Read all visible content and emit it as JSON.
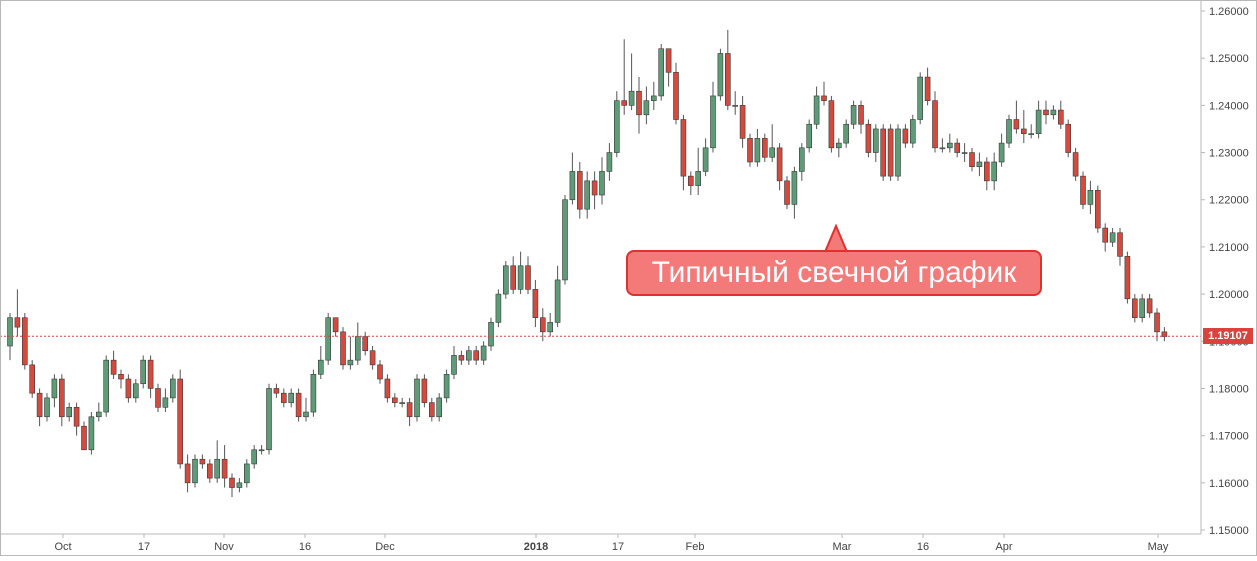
{
  "chart_data": {
    "type": "candlestick",
    "title": "",
    "ylim": [
      1.15,
      1.26
    ],
    "y_ticks": [
      "1.26000",
      "1.25000",
      "1.24000",
      "1.23000",
      "1.22000",
      "1.21000",
      "1.20000",
      "1.19000",
      "1.18000",
      "1.17000",
      "1.16000",
      "1.15000"
    ],
    "x_ticks": [
      "Oct",
      "17",
      "Nov",
      "16",
      "Dec",
      "2018",
      "17",
      "Feb",
      "Mar",
      "16",
      "Apr",
      "May"
    ],
    "current_price": 1.19107,
    "current_price_label": "1.19107",
    "annotation": "Типичный свечной график",
    "colors": {
      "up": "#5e9b77",
      "down": "#d44a3f",
      "price_line": "#d9433b"
    },
    "candles": [
      [
        1.189,
        1.195,
        1.196,
        1.186
      ],
      [
        1.195,
        1.193,
        1.201,
        1.191
      ],
      [
        1.195,
        1.185,
        1.196,
        1.184
      ],
      [
        1.185,
        1.179,
        1.186,
        1.178
      ],
      [
        1.179,
        1.174,
        1.18,
        1.172
      ],
      [
        1.174,
        1.178,
        1.179,
        1.173
      ],
      [
        1.178,
        1.182,
        1.183,
        1.176
      ],
      [
        1.182,
        1.174,
        1.183,
        1.172
      ],
      [
        1.174,
        1.176,
        1.177,
        1.173
      ],
      [
        1.176,
        1.172,
        1.177,
        1.17
      ],
      [
        1.172,
        1.167,
        1.173,
        1.167
      ],
      [
        1.167,
        1.174,
        1.175,
        1.166
      ],
      [
        1.174,
        1.175,
        1.177,
        1.173
      ],
      [
        1.175,
        1.186,
        1.187,
        1.174
      ],
      [
        1.186,
        1.183,
        1.188,
        1.182
      ],
      [
        1.183,
        1.182,
        1.184,
        1.18
      ],
      [
        1.182,
        1.178,
        1.183,
        1.177
      ],
      [
        1.178,
        1.181,
        1.182,
        1.177
      ],
      [
        1.181,
        1.186,
        1.187,
        1.18
      ],
      [
        1.186,
        1.18,
        1.187,
        1.178
      ],
      [
        1.18,
        1.176,
        1.181,
        1.175
      ],
      [
        1.176,
        1.178,
        1.18,
        1.175
      ],
      [
        1.178,
        1.182,
        1.183,
        1.177
      ],
      [
        1.182,
        1.164,
        1.184,
        1.163
      ],
      [
        1.164,
        1.16,
        1.166,
        1.158
      ],
      [
        1.16,
        1.165,
        1.166,
        1.159
      ],
      [
        1.165,
        1.164,
        1.166,
        1.163
      ],
      [
        1.164,
        1.161,
        1.165,
        1.16
      ],
      [
        1.161,
        1.165,
        1.169,
        1.16
      ],
      [
        1.165,
        1.161,
        1.168,
        1.159
      ],
      [
        1.161,
        1.159,
        1.162,
        1.157
      ],
      [
        1.159,
        1.16,
        1.161,
        1.158
      ],
      [
        1.16,
        1.164,
        1.165,
        1.159
      ],
      [
        1.164,
        1.167,
        1.168,
        1.163
      ],
      [
        1.167,
        1.167,
        1.168,
        1.166
      ],
      [
        1.167,
        1.18,
        1.181,
        1.166
      ],
      [
        1.18,
        1.179,
        1.181,
        1.178
      ],
      [
        1.179,
        1.177,
        1.18,
        1.176
      ],
      [
        1.177,
        1.179,
        1.18,
        1.176
      ],
      [
        1.179,
        1.174,
        1.18,
        1.173
      ],
      [
        1.174,
        1.175,
        1.178,
        1.173
      ],
      [
        1.175,
        1.183,
        1.184,
        1.174
      ],
      [
        1.183,
        1.186,
        1.189,
        1.182
      ],
      [
        1.186,
        1.195,
        1.196,
        1.185
      ],
      [
        1.195,
        1.192,
        1.195,
        1.191
      ],
      [
        1.192,
        1.185,
        1.193,
        1.184
      ],
      [
        1.185,
        1.186,
        1.191,
        1.184
      ],
      [
        1.186,
        1.191,
        1.194,
        1.185
      ],
      [
        1.191,
        1.188,
        1.192,
        1.187
      ],
      [
        1.188,
        1.185,
        1.189,
        1.184
      ],
      [
        1.185,
        1.182,
        1.186,
        1.181
      ],
      [
        1.182,
        1.178,
        1.183,
        1.177
      ],
      [
        1.178,
        1.177,
        1.179,
        1.176
      ],
      [
        1.177,
        1.177,
        1.178,
        1.176
      ],
      [
        1.177,
        1.174,
        1.178,
        1.172
      ],
      [
        1.174,
        1.182,
        1.183,
        1.173
      ],
      [
        1.182,
        1.177,
        1.183,
        1.176
      ],
      [
        1.177,
        1.174,
        1.178,
        1.173
      ],
      [
        1.174,
        1.178,
        1.179,
        1.173
      ],
      [
        1.178,
        1.183,
        1.184,
        1.177
      ],
      [
        1.183,
        1.187,
        1.189,
        1.182
      ],
      [
        1.187,
        1.186,
        1.188,
        1.185
      ],
      [
        1.186,
        1.188,
        1.189,
        1.185
      ],
      [
        1.188,
        1.186,
        1.189,
        1.185
      ],
      [
        1.186,
        1.189,
        1.19,
        1.185
      ],
      [
        1.189,
        1.194,
        1.195,
        1.188
      ],
      [
        1.194,
        1.2,
        1.201,
        1.193
      ],
      [
        1.2,
        1.206,
        1.207,
        1.199
      ],
      [
        1.206,
        1.201,
        1.208,
        1.2
      ],
      [
        1.201,
        1.206,
        1.209,
        1.2
      ],
      [
        1.206,
        1.201,
        1.208,
        1.2
      ],
      [
        1.201,
        1.195,
        1.203,
        1.193
      ],
      [
        1.195,
        1.192,
        1.197,
        1.19
      ],
      [
        1.192,
        1.194,
        1.196,
        1.191
      ],
      [
        1.194,
        1.203,
        1.206,
        1.193
      ],
      [
        1.203,
        1.22,
        1.221,
        1.202
      ],
      [
        1.22,
        1.226,
        1.23,
        1.219
      ],
      [
        1.226,
        1.218,
        1.228,
        1.216
      ],
      [
        1.218,
        1.224,
        1.226,
        1.216
      ],
      [
        1.224,
        1.221,
        1.226,
        1.218
      ],
      [
        1.221,
        1.226,
        1.229,
        1.219
      ],
      [
        1.226,
        1.23,
        1.232,
        1.224
      ],
      [
        1.23,
        1.241,
        1.243,
        1.229
      ],
      [
        1.241,
        1.24,
        1.254,
        1.238
      ],
      [
        1.24,
        1.243,
        1.251,
        1.239
      ],
      [
        1.243,
        1.238,
        1.246,
        1.234
      ],
      [
        1.238,
        1.241,
        1.244,
        1.236
      ],
      [
        1.241,
        1.242,
        1.245,
        1.239
      ],
      [
        1.242,
        1.252,
        1.253,
        1.241
      ],
      [
        1.252,
        1.247,
        1.252,
        1.244
      ],
      [
        1.247,
        1.237,
        1.249,
        1.236
      ],
      [
        1.237,
        1.225,
        1.238,
        1.222
      ],
      [
        1.225,
        1.223,
        1.226,
        1.221
      ],
      [
        1.223,
        1.226,
        1.231,
        1.221
      ],
      [
        1.226,
        1.231,
        1.233,
        1.225
      ],
      [
        1.231,
        1.242,
        1.245,
        1.23
      ],
      [
        1.242,
        1.251,
        1.252,
        1.241
      ],
      [
        1.251,
        1.24,
        1.256,
        1.239
      ],
      [
        1.24,
        1.24,
        1.243,
        1.238
      ],
      [
        1.24,
        1.233,
        1.242,
        1.231
      ],
      [
        1.233,
        1.228,
        1.234,
        1.227
      ],
      [
        1.228,
        1.233,
        1.235,
        1.227
      ],
      [
        1.233,
        1.229,
        1.234,
        1.228
      ],
      [
        1.229,
        1.231,
        1.236,
        1.228
      ],
      [
        1.231,
        1.224,
        1.232,
        1.222
      ],
      [
        1.224,
        1.219,
        1.225,
        1.218
      ],
      [
        1.219,
        1.226,
        1.227,
        1.216
      ],
      [
        1.226,
        1.231,
        1.232,
        1.224
      ],
      [
        1.231,
        1.236,
        1.237,
        1.23
      ],
      [
        1.236,
        1.242,
        1.244,
        1.235
      ],
      [
        1.242,
        1.241,
        1.245,
        1.24
      ],
      [
        1.241,
        1.231,
        1.242,
        1.23
      ],
      [
        1.231,
        1.232,
        1.233,
        1.229
      ],
      [
        1.232,
        1.236,
        1.237,
        1.231
      ],
      [
        1.236,
        1.24,
        1.241,
        1.235
      ],
      [
        1.24,
        1.236,
        1.241,
        1.234
      ],
      [
        1.236,
        1.23,
        1.237,
        1.229
      ],
      [
        1.23,
        1.235,
        1.236,
        1.228
      ],
      [
        1.235,
        1.225,
        1.236,
        1.224
      ],
      [
        1.235,
        1.225,
        1.236,
        1.224
      ],
      [
        1.225,
        1.235,
        1.236,
        1.224
      ],
      [
        1.235,
        1.232,
        1.236,
        1.231
      ],
      [
        1.232,
        1.237,
        1.238,
        1.231
      ],
      [
        1.237,
        1.246,
        1.247,
        1.236
      ],
      [
        1.246,
        1.241,
        1.248,
        1.24
      ],
      [
        1.241,
        1.231,
        1.243,
        1.23
      ],
      [
        1.231,
        1.231,
        1.233,
        1.23
      ],
      [
        1.231,
        1.232,
        1.234,
        1.23
      ],
      [
        1.232,
        1.23,
        1.233,
        1.229
      ],
      [
        1.23,
        1.23,
        1.232,
        1.228
      ],
      [
        1.23,
        1.227,
        1.231,
        1.226
      ],
      [
        1.227,
        1.228,
        1.23,
        1.225
      ],
      [
        1.228,
        1.224,
        1.229,
        1.222
      ],
      [
        1.224,
        1.228,
        1.23,
        1.222
      ],
      [
        1.228,
        1.232,
        1.234,
        1.227
      ],
      [
        1.232,
        1.237,
        1.238,
        1.231
      ],
      [
        1.237,
        1.235,
        1.241,
        1.234
      ],
      [
        1.235,
        1.234,
        1.239,
        1.232
      ],
      [
        1.234,
        1.234,
        1.236,
        1.233
      ],
      [
        1.234,
        1.239,
        1.241,
        1.233
      ],
      [
        1.239,
        1.238,
        1.241,
        1.236
      ],
      [
        1.238,
        1.239,
        1.24,
        1.237
      ],
      [
        1.239,
        1.236,
        1.241,
        1.235
      ],
      [
        1.236,
        1.23,
        1.237,
        1.229
      ],
      [
        1.23,
        1.225,
        1.231,
        1.224
      ],
      [
        1.225,
        1.219,
        1.226,
        1.218
      ],
      [
        1.219,
        1.222,
        1.224,
        1.217
      ],
      [
        1.222,
        1.214,
        1.223,
        1.213
      ],
      [
        1.214,
        1.211,
        1.215,
        1.209
      ],
      [
        1.211,
        1.213,
        1.214,
        1.21
      ],
      [
        1.213,
        1.208,
        1.214,
        1.206
      ],
      [
        1.208,
        1.199,
        1.209,
        1.198
      ],
      [
        1.199,
        1.195,
        1.2,
        1.194
      ],
      [
        1.195,
        1.199,
        1.2,
        1.194
      ],
      [
        1.199,
        1.196,
        1.2,
        1.195
      ],
      [
        1.196,
        1.192,
        1.197,
        1.19
      ],
      [
        1.192,
        1.191,
        1.193,
        1.19
      ]
    ]
  }
}
